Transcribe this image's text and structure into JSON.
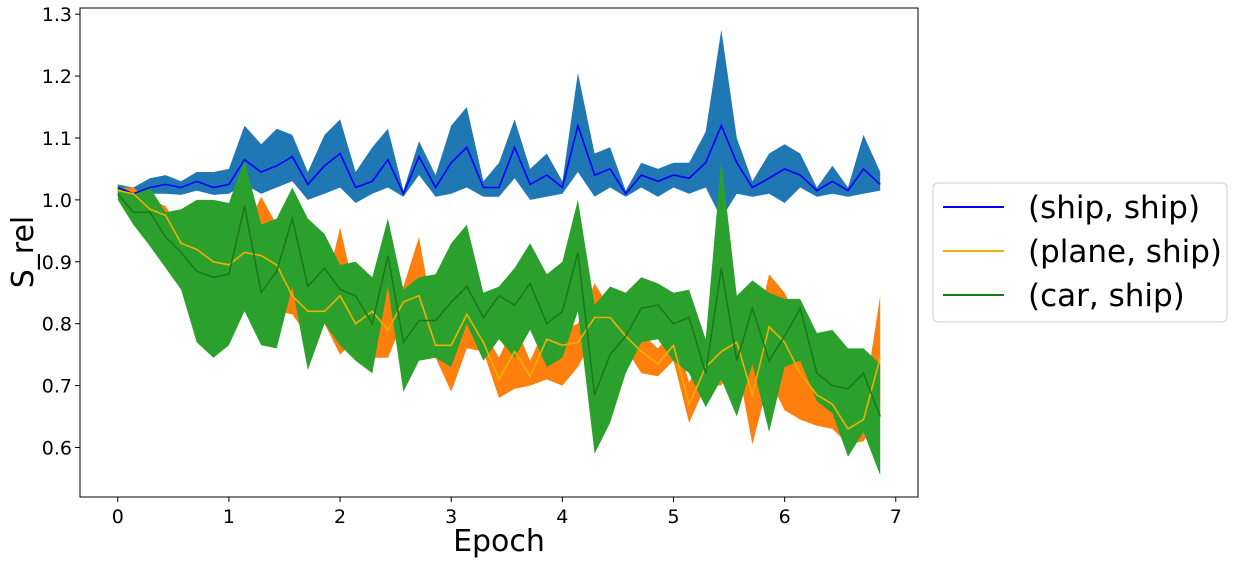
{
  "chart_data": {
    "type": "line",
    "title": "",
    "xlabel": "Epoch",
    "ylabel": "S_rel",
    "xlim": [
      -0.34,
      7.2
    ],
    "ylim": [
      0.52,
      1.31
    ],
    "xticks": [
      "0",
      "1",
      "2",
      "3",
      "4",
      "5",
      "6",
      "7"
    ],
    "yticks": [
      "0.6",
      "0.7",
      "0.8",
      "0.9",
      "1.0",
      "1.1",
      "1.2",
      "1.3"
    ],
    "grid": false,
    "legend_position": "right",
    "x": [
      0,
      0.14,
      0.29,
      0.43,
      0.57,
      0.71,
      0.86,
      1,
      1.14,
      1.29,
      1.43,
      1.57,
      1.71,
      1.86,
      2,
      2.14,
      2.29,
      2.43,
      2.57,
      2.71,
      2.86,
      3,
      3.14,
      3.29,
      3.43,
      3.57,
      3.71,
      3.86,
      4,
      4.14,
      4.29,
      4.43,
      4.57,
      4.71,
      4.86,
      5,
      5.14,
      5.29,
      5.43,
      5.57,
      5.71,
      5.86,
      6,
      6.14,
      6.29,
      6.43,
      6.57,
      6.71,
      6.86
    ],
    "series": [
      {
        "name": "(ship, ship)",
        "line_color": "#0000ff",
        "band_color": "#1f77b4",
        "values": [
          1.02,
          1.01,
          1.02,
          1.025,
          1.02,
          1.03,
          1.02,
          1.025,
          1.065,
          1.045,
          1.055,
          1.07,
          1.025,
          1.055,
          1.075,
          1.02,
          1.03,
          1.065,
          1.01,
          1.07,
          1.02,
          1.06,
          1.085,
          1.02,
          1.02,
          1.085,
          1.025,
          1.04,
          1.02,
          1.12,
          1.04,
          1.05,
          1.01,
          1.04,
          1.03,
          1.04,
          1.035,
          1.06,
          1.12,
          1.06,
          1.02,
          1.035,
          1.05,
          1.04,
          1.015,
          1.03,
          1.015,
          1.05,
          1.025
        ],
        "lower": [
          1.015,
          1.005,
          1.01,
          1.01,
          1.008,
          1.015,
          1.008,
          1.01,
          1.025,
          1.01,
          1.02,
          1.03,
          1.0,
          1.01,
          1.02,
          0.995,
          1.01,
          1.02,
          1.005,
          1.04,
          1.005,
          1.01,
          1.02,
          1.005,
          1.005,
          1.035,
          1.0,
          1.005,
          1.01,
          1.045,
          1.005,
          1.02,
          1.005,
          1.02,
          1.005,
          1.02,
          1.01,
          1.02,
          0.97,
          1.01,
          1.005,
          1.01,
          0.995,
          1.02,
          1.005,
          1.01,
          1.005,
          1.01,
          1.015
        ],
        "upper": [
          1.025,
          1.02,
          1.035,
          1.04,
          1.03,
          1.045,
          1.045,
          1.05,
          1.12,
          1.09,
          1.115,
          1.105,
          1.045,
          1.105,
          1.13,
          1.045,
          1.085,
          1.115,
          1.015,
          1.095,
          1.04,
          1.12,
          1.15,
          1.03,
          1.06,
          1.13,
          1.05,
          1.075,
          1.03,
          1.205,
          1.075,
          1.085,
          1.015,
          1.06,
          1.05,
          1.06,
          1.06,
          1.11,
          1.275,
          1.1,
          1.03,
          1.075,
          1.09,
          1.075,
          1.02,
          1.055,
          1.02,
          1.105,
          1.045
        ]
      },
      {
        "name": "(plane, ship)",
        "line_color": "#f0b000",
        "band_color": "#ff7f0e",
        "values": [
          1.015,
          1.01,
          0.985,
          0.975,
          0.93,
          0.92,
          0.9,
          0.895,
          0.915,
          0.91,
          0.895,
          0.845,
          0.82,
          0.82,
          0.845,
          0.8,
          0.82,
          0.79,
          0.835,
          0.845,
          0.765,
          0.765,
          0.815,
          0.77,
          0.71,
          0.755,
          0.715,
          0.775,
          0.765,
          0.77,
          0.81,
          0.81,
          0.78,
          0.755,
          0.735,
          0.765,
          0.67,
          0.73,
          0.755,
          0.77,
          0.685,
          0.795,
          0.77,
          0.72,
          0.685,
          0.67,
          0.63,
          0.645,
          0.745
        ],
        "lower": [
          1.01,
          1.0,
          0.97,
          0.95,
          0.91,
          0.89,
          0.87,
          0.855,
          0.84,
          0.835,
          0.82,
          0.815,
          0.78,
          0.8,
          0.75,
          0.775,
          0.745,
          0.745,
          0.805,
          0.795,
          0.745,
          0.69,
          0.76,
          0.755,
          0.68,
          0.695,
          0.7,
          0.71,
          0.7,
          0.73,
          0.78,
          0.795,
          0.76,
          0.72,
          0.715,
          0.74,
          0.64,
          0.7,
          0.7,
          0.74,
          0.605,
          0.71,
          0.66,
          0.645,
          0.635,
          0.63,
          0.605,
          0.61,
          0.65
        ],
        "upper": [
          1.02,
          1.02,
          1.0,
          0.99,
          0.95,
          0.945,
          0.93,
          0.93,
          0.95,
          1.005,
          0.96,
          0.87,
          0.865,
          0.85,
          0.955,
          0.845,
          0.845,
          0.87,
          0.86,
          0.94,
          0.79,
          0.79,
          0.86,
          0.79,
          0.745,
          0.8,
          0.74,
          0.8,
          0.79,
          0.8,
          0.865,
          0.825,
          0.8,
          0.785,
          0.76,
          0.79,
          0.705,
          0.76,
          0.8,
          0.8,
          0.76,
          0.88,
          0.85,
          0.8,
          0.735,
          0.705,
          0.66,
          0.67,
          0.845
        ]
      },
      {
        "name": "(car, ship)",
        "line_color": "#1a7a1a",
        "band_color": "#2ca02c",
        "values": [
          1.01,
          0.98,
          0.98,
          0.94,
          0.915,
          0.885,
          0.875,
          0.88,
          0.99,
          0.85,
          0.885,
          0.97,
          0.86,
          0.89,
          0.855,
          0.845,
          0.8,
          0.91,
          0.77,
          0.805,
          0.805,
          0.835,
          0.86,
          0.81,
          0.845,
          0.83,
          0.865,
          0.8,
          0.82,
          0.915,
          0.685,
          0.75,
          0.78,
          0.825,
          0.83,
          0.8,
          0.81,
          0.72,
          0.89,
          0.74,
          0.825,
          0.74,
          0.78,
          0.825,
          0.72,
          0.7,
          0.695,
          0.72,
          0.65
        ],
        "lower": [
          1.0,
          0.96,
          0.925,
          0.89,
          0.855,
          0.77,
          0.745,
          0.765,
          0.82,
          0.765,
          0.76,
          0.86,
          0.725,
          0.8,
          0.765,
          0.74,
          0.72,
          0.86,
          0.69,
          0.74,
          0.745,
          0.73,
          0.8,
          0.74,
          0.775,
          0.745,
          0.79,
          0.73,
          0.745,
          0.82,
          0.59,
          0.64,
          0.72,
          0.77,
          0.775,
          0.74,
          0.72,
          0.665,
          0.71,
          0.65,
          0.735,
          0.625,
          0.73,
          0.74,
          0.675,
          0.655,
          0.585,
          0.625,
          0.555
        ],
        "upper": [
          1.025,
          1.01,
          1.02,
          0.98,
          0.985,
          1.0,
          1.0,
          0.995,
          1.065,
          0.96,
          0.97,
          1.02,
          0.97,
          0.945,
          0.895,
          0.9,
          0.875,
          0.97,
          0.855,
          0.875,
          0.88,
          0.93,
          0.96,
          0.85,
          0.86,
          0.89,
          0.93,
          0.88,
          0.9,
          1.0,
          0.83,
          0.86,
          0.85,
          0.875,
          0.865,
          0.85,
          0.855,
          0.775,
          1.065,
          0.845,
          0.87,
          0.85,
          0.84,
          0.84,
          0.785,
          0.79,
          0.76,
          0.76,
          0.735
        ]
      }
    ]
  }
}
